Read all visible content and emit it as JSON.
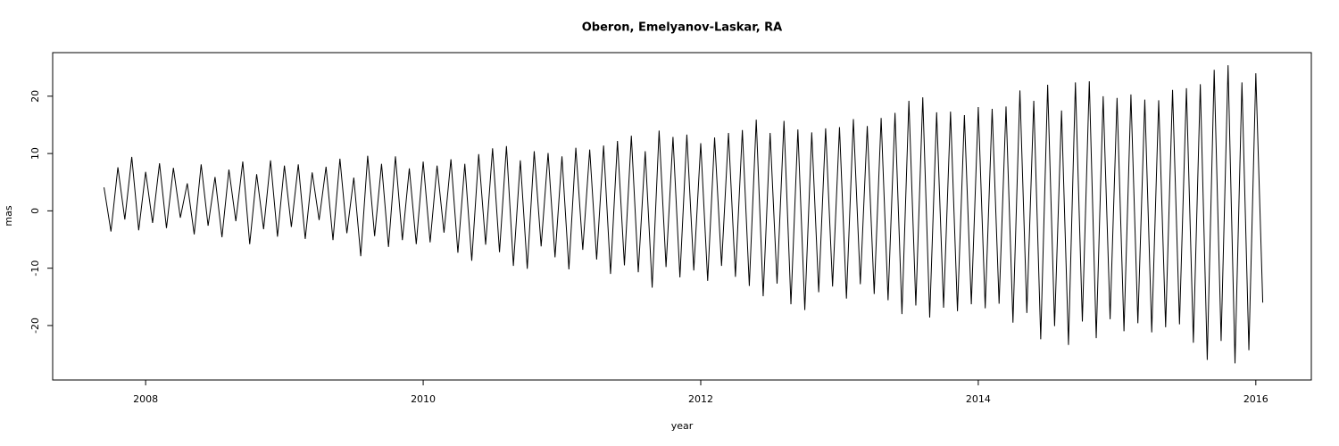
{
  "chart_data": {
    "type": "line",
    "title": "Oberon, Emelyanov-Laskar, RA",
    "x_label": "year",
    "y_label": "mas",
    "x": [
      2007.7,
      2007.75,
      2007.8,
      2007.85,
      2007.9,
      2007.95,
      2008.0,
      2008.05,
      2008.1,
      2008.15,
      2008.2,
      2008.25,
      2008.3,
      2008.35,
      2008.4,
      2008.45,
      2008.5,
      2008.55,
      2008.6,
      2008.65,
      2008.7,
      2008.75,
      2008.8,
      2008.85,
      2008.9,
      2008.95,
      2009.0,
      2009.05,
      2009.1,
      2009.15,
      2009.2,
      2009.25,
      2009.3,
      2009.35,
      2009.4,
      2009.45,
      2009.5,
      2009.55,
      2009.6,
      2009.65,
      2009.7,
      2009.75,
      2009.8,
      2009.85,
      2009.9,
      2009.95,
      2010.0,
      2010.05,
      2010.1,
      2010.15,
      2010.2,
      2010.25,
      2010.3,
      2010.35,
      2010.4,
      2010.45,
      2010.5,
      2010.55,
      2010.6,
      2010.65,
      2010.7,
      2010.75,
      2010.8,
      2010.85,
      2010.9,
      2010.95,
      2011.0,
      2011.05,
      2011.1,
      2011.15,
      2011.2,
      2011.25,
      2011.3,
      2011.35,
      2011.4,
      2011.45,
      2011.5,
      2011.55,
      2011.6,
      2011.65,
      2011.7,
      2011.75,
      2011.8,
      2011.85,
      2011.9,
      2011.95,
      2012.0,
      2012.05,
      2012.1,
      2012.15,
      2012.2,
      2012.25,
      2012.3,
      2012.35,
      2012.4,
      2012.45,
      2012.5,
      2012.55,
      2012.6,
      2012.65,
      2012.7,
      2012.75,
      2012.8,
      2012.85,
      2012.9,
      2012.95,
      2013.0,
      2013.05,
      2013.1,
      2013.15,
      2013.2,
      2013.25,
      2013.3,
      2013.35,
      2013.4,
      2013.45,
      2013.5,
      2013.55,
      2013.6,
      2013.65,
      2013.7,
      2013.75,
      2013.8,
      2013.85,
      2013.9,
      2013.95,
      2014.0,
      2014.05,
      2014.1,
      2014.15,
      2014.2,
      2014.25,
      2014.3,
      2014.35,
      2014.4,
      2014.45,
      2014.5,
      2014.55,
      2014.6,
      2014.65,
      2014.7,
      2014.75,
      2014.8,
      2014.85,
      2014.9,
      2014.95,
      2015.0,
      2015.05,
      2015.1,
      2015.15,
      2015.2,
      2015.25,
      2015.3,
      2015.35,
      2015.4,
      2015.45,
      2015.5,
      2015.55,
      2015.6,
      2015.65,
      2015.7,
      2015.75,
      2015.8,
      2015.85,
      2015.9,
      2015.95,
      2016.0,
      2016.05
    ],
    "series": [
      {
        "name": "RA",
        "color": "#000000",
        "values": [
          4.1,
          -3.6,
          7.6,
          -1.5,
          9.4,
          -3.4,
          6.8,
          -2.1,
          8.3,
          -3.0,
          7.5,
          -1.2,
          4.8,
          -4.1,
          8.1,
          -2.6,
          5.9,
          -4.6,
          7.2,
          -1.8,
          8.6,
          -5.8,
          6.4,
          -3.2,
          8.8,
          -4.5,
          7.9,
          -2.8,
          8.1,
          -4.9,
          6.7,
          -1.6,
          7.7,
          -5.1,
          9.1,
          -3.9,
          5.8,
          -7.9,
          9.6,
          -4.4,
          8.2,
          -6.3,
          9.5,
          -5.1,
          7.4,
          -5.8,
          8.6,
          -5.5,
          7.9,
          -3.8,
          9.0,
          -7.3,
          8.2,
          -8.7,
          9.9,
          -5.9,
          10.9,
          -7.2,
          11.3,
          -9.6,
          8.8,
          -10.1,
          10.4,
          -6.2,
          10.1,
          -8.1,
          9.5,
          -10.2,
          11.0,
          -6.8,
          10.7,
          -8.5,
          11.4,
          -11.0,
          12.2,
          -9.5,
          13.1,
          -10.7,
          10.4,
          -13.4,
          14.0,
          -9.8,
          12.9,
          -11.6,
          13.3,
          -10.4,
          11.8,
          -12.2,
          12.8,
          -9.6,
          13.6,
          -11.5,
          14.1,
          -13.1,
          15.9,
          -14.9,
          13.6,
          -12.7,
          15.7,
          -16.3,
          14.2,
          -17.3,
          13.7,
          -14.2,
          14.4,
          -13.2,
          14.6,
          -15.3,
          16.0,
          -12.8,
          14.8,
          -14.5,
          16.2,
          -15.6,
          17.1,
          -18.0,
          19.2,
          -16.5,
          19.8,
          -18.6,
          17.2,
          -16.9,
          17.3,
          -17.5,
          16.7,
          -16.3,
          18.1,
          -17.0,
          17.8,
          -16.2,
          18.2,
          -19.5,
          21.0,
          -17.8,
          19.2,
          -22.4,
          22.0,
          -20.1,
          17.5,
          -23.4,
          22.4,
          -19.3,
          22.6,
          -22.2,
          20.0,
          -18.9,
          19.7,
          -21.0,
          20.3,
          -19.6,
          19.4,
          -21.2,
          19.3,
          -20.3,
          21.1,
          -19.8,
          21.4,
          -23.0,
          22.1,
          -26.0,
          24.6,
          -22.7,
          25.4,
          -26.6,
          22.4,
          -24.3,
          24.0,
          -16.0
        ]
      }
    ],
    "xlim": [
      2007.33,
      2016.4
    ],
    "ylim": [
      -29.5,
      27.6
    ],
    "xticks": [
      2008,
      2010,
      2012,
      2014,
      2016
    ],
    "yticks": [
      -20,
      -10,
      0,
      10,
      20
    ]
  }
}
